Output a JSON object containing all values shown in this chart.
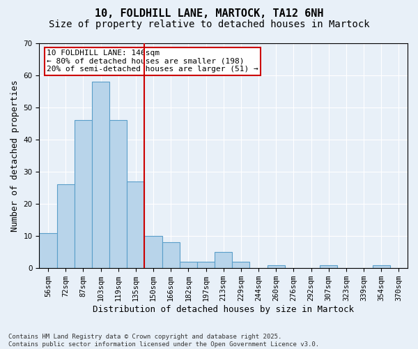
{
  "title1": "10, FOLDHILL LANE, MARTOCK, TA12 6NH",
  "title2": "Size of property relative to detached houses in Martock",
  "xlabel": "Distribution of detached houses by size in Martock",
  "ylabel": "Number of detached properties",
  "categories": [
    "56sqm",
    "72sqm",
    "87sqm",
    "103sqm",
    "119sqm",
    "135sqm",
    "150sqm",
    "166sqm",
    "182sqm",
    "197sqm",
    "213sqm",
    "229sqm",
    "244sqm",
    "260sqm",
    "276sqm",
    "292sqm",
    "307sqm",
    "323sqm",
    "339sqm",
    "354sqm",
    "370sqm"
  ],
  "values": [
    11,
    26,
    46,
    58,
    46,
    27,
    10,
    8,
    2,
    2,
    5,
    2,
    0,
    1,
    0,
    0,
    1,
    0,
    0,
    1,
    0
  ],
  "bar_color": "#b8d4ea",
  "bar_edgecolor": "#5a9ec9",
  "vline_x": 5.5,
  "vline_color": "#cc0000",
  "annotation_text": "10 FOLDHILL LANE: 146sqm\n← 80% of detached houses are smaller (198)\n20% of semi-detached houses are larger (51) →",
  "annotation_box_color": "#ffffff",
  "annotation_box_edgecolor": "#cc0000",
  "ylim": [
    0,
    70
  ],
  "yticks": [
    0,
    10,
    20,
    30,
    40,
    50,
    60,
    70
  ],
  "bg_color": "#e8f0f8",
  "plot_bg_color": "#e8f0f8",
  "footnote": "Contains HM Land Registry data © Crown copyright and database right 2025.\nContains public sector information licensed under the Open Government Licence v3.0.",
  "title_fontsize": 11,
  "subtitle_fontsize": 10,
  "axis_label_fontsize": 9,
  "tick_fontsize": 7.5,
  "annotation_fontsize": 8,
  "footnote_fontsize": 6.5
}
